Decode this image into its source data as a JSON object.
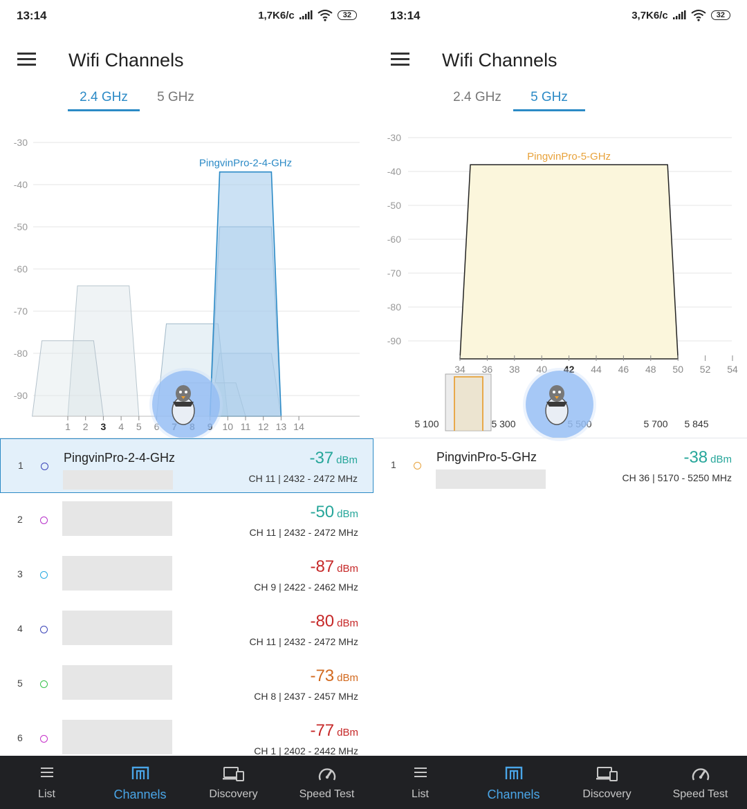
{
  "colors": {
    "accent": "#2b8ac6",
    "signal_good": "#26a69a",
    "signal_bad": "#c62828",
    "signal_warn": "#d2691e",
    "band5_highlight": "#e8a23a",
    "nav_bg": "#202124"
  },
  "screens": [
    {
      "status_bar": {
        "time": "13:14",
        "speed": "1,7K6/c",
        "battery": "32"
      },
      "app_bar": {
        "menu_icon": "hamburger-menu-icon",
        "title": "Wifi Channels"
      },
      "band_tabs": [
        {
          "label": "2.4 GHz",
          "active": true
        },
        {
          "label": "5 GHz",
          "active": false
        }
      ],
      "chart_data": {
        "type": "area",
        "title": "",
        "xlabel": "",
        "ylabel": "",
        "ylim": [
          -95,
          -30
        ],
        "y_ticks": [
          "-30",
          "-40",
          "-50",
          "-60",
          "-70",
          "-80",
          "-90"
        ],
        "x_ticks": [
          "1",
          "2",
          "3",
          "4",
          "5",
          "6",
          "7",
          "8",
          "9",
          "10",
          "11",
          "12",
          "13",
          "14"
        ],
        "bold_ticks": [
          "3",
          "7",
          "8",
          "9"
        ],
        "highlight_label": "PingvinPro-2-4-GHz",
        "series": [
          {
            "name": "PingvinPro-2-4-GHz",
            "channel": 11,
            "from": 9,
            "to": 13,
            "dbm": -37
          },
          {
            "channel": 11,
            "from": 9,
            "to": 13,
            "dbm": -50
          },
          {
            "channel": 9,
            "from": 7,
            "to": 11,
            "dbm": -87
          },
          {
            "channel": 11,
            "from": 9,
            "to": 13,
            "dbm": -80
          },
          {
            "channel": 8,
            "from": 6,
            "to": 10,
            "dbm": -73
          },
          {
            "channel": 1,
            "from": -1,
            "to": 3,
            "dbm": -77
          },
          {
            "channel": 3,
            "from": 1,
            "to": 5,
            "dbm": -64
          }
        ]
      },
      "networks": [
        {
          "index": "1",
          "name": "PingvinPro-2-4-GHz",
          "signal": "-37",
          "unit": "dBm",
          "meta": "CH 11 | 2432 - 2472 MHz",
          "dot_color": "#3b44b8",
          "signal_color": "#26a69a"
        },
        {
          "index": "2",
          "name": "",
          "signal": "-50",
          "unit": "dBm",
          "meta": "CH 11 | 2432 - 2472 MHz",
          "dot_color": "#b62fc9",
          "signal_color": "#26a69a"
        },
        {
          "index": "3",
          "name": "",
          "signal": "-87",
          "unit": "dBm",
          "meta": "CH 9 | 2422 - 2462 MHz",
          "dot_color": "#26a9e0",
          "signal_color": "#c62828"
        },
        {
          "index": "4",
          "name": "",
          "signal": "-80",
          "unit": "dBm",
          "meta": "CH 11 | 2432 - 2472 MHz",
          "dot_color": "#3b44b8",
          "signal_color": "#c62828"
        },
        {
          "index": "5",
          "name": "",
          "signal": "-73",
          "unit": "dBm",
          "meta": "CH 8 | 2437 - 2457 MHz",
          "dot_color": "#35c24a",
          "signal_color": "#d2691e"
        },
        {
          "index": "6",
          "name": "",
          "signal": "-77",
          "unit": "dBm",
          "meta": "CH 1 | 2402 - 2442 MHz",
          "dot_color": "#c62fc9",
          "signal_color": "#c62828"
        }
      ],
      "bottom_nav": [
        {
          "label": "List",
          "icon": "list-icon",
          "active": false
        },
        {
          "label": "Channels",
          "icon": "channels-icon",
          "active": true
        },
        {
          "label": "Discovery",
          "icon": "devices-icon",
          "active": false
        },
        {
          "label": "Speed Test",
          "icon": "speedometer-icon",
          "active": false
        }
      ]
    },
    {
      "status_bar": {
        "time": "13:14",
        "speed": "3,7K6/c",
        "battery": "32"
      },
      "app_bar": {
        "menu_icon": "hamburger-menu-icon",
        "title": "Wifi Channels"
      },
      "band_tabs": [
        {
          "label": "2.4 GHz",
          "active": false
        },
        {
          "label": "5 GHz",
          "active": true
        }
      ],
      "chart_data": {
        "type": "area",
        "title": "",
        "xlabel": "",
        "ylabel": "",
        "ylim": [
          -95,
          -30
        ],
        "y_ticks": [
          "-30",
          "-40",
          "-50",
          "-60",
          "-70",
          "-80",
          "-90"
        ],
        "x_ticks": [
          "34",
          "36",
          "38",
          "40",
          "42",
          "44",
          "46",
          "48",
          "50",
          "52",
          "54"
        ],
        "bold_ticks": [
          "42"
        ],
        "highlight_label": "PingvinPro-5-GHz",
        "series": [
          {
            "name": "PingvinPro-5-GHz",
            "channel": 36,
            "from": 34,
            "to": 50,
            "dbm": -38
          }
        ],
        "overview_ticks": [
          "5 100",
          "5 300",
          "5 500",
          "5 700",
          "5 845"
        ]
      },
      "networks": [
        {
          "index": "1",
          "name": "PingvinPro-5-GHz",
          "signal": "-38",
          "unit": "dBm",
          "meta": "CH 36 | 5170 - 5250 MHz",
          "dot_color": "#e8a23a",
          "signal_color": "#26a69a"
        }
      ],
      "bottom_nav": [
        {
          "label": "List",
          "icon": "list-icon",
          "active": false
        },
        {
          "label": "Channels",
          "icon": "channels-icon",
          "active": true
        },
        {
          "label": "Discovery",
          "icon": "devices-icon",
          "active": false
        },
        {
          "label": "Speed Test",
          "icon": "speedometer-icon",
          "active": false
        }
      ]
    }
  ]
}
